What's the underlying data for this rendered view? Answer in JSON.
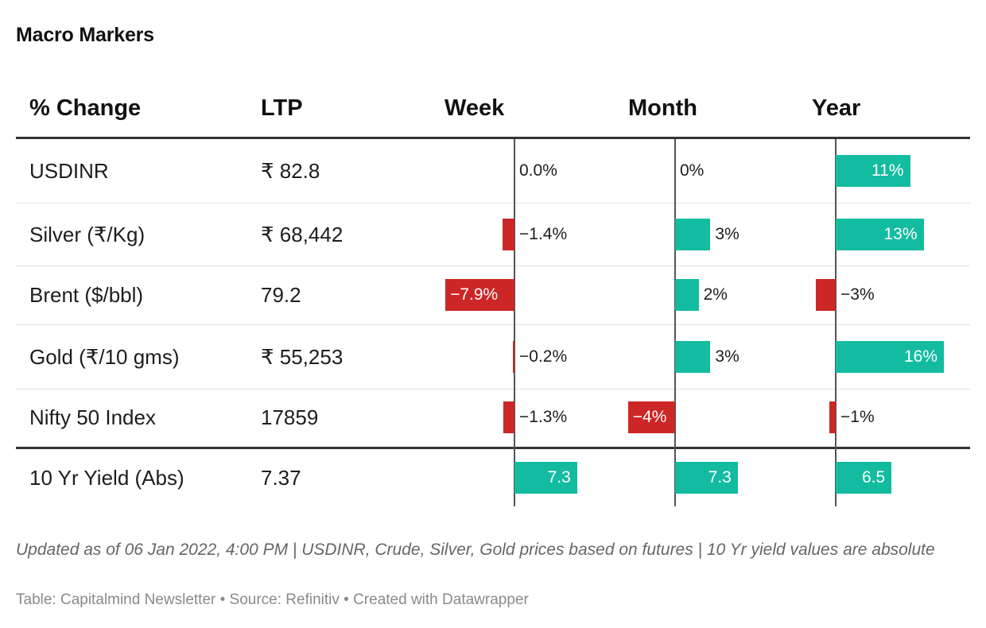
{
  "title": "Macro Markers",
  "columns": {
    "change": "% Change",
    "ltp": "LTP",
    "week": "Week",
    "month": "Month",
    "year": "Year"
  },
  "rows": [
    {
      "name": "USDINR",
      "ltp": "₹ 82.8",
      "week": "0.0%",
      "month": "0%",
      "year": "11%"
    },
    {
      "name": "Silver (₹/Kg)",
      "ltp": "₹ 68,442",
      "week": "−1.4%",
      "month": "3%",
      "year": "13%"
    },
    {
      "name": "Brent ($/bbl)",
      "ltp": "79.2",
      "week": "−7.9%",
      "month": "2%",
      "year": "−3%"
    },
    {
      "name": "Gold (₹/10 gms)",
      "ltp": "₹ 55,253",
      "week": "−0.2%",
      "month": "3%",
      "year": "16%"
    },
    {
      "name": "Nifty 50 Index",
      "ltp": "17859",
      "week": "−1.3%",
      "month": "−4%",
      "year": "−1%"
    },
    {
      "name": "10 Yr Yield (Abs)",
      "ltp": "7.37",
      "week": "7.3",
      "month": "7.3",
      "year": "6.5"
    }
  ],
  "chart_data": {
    "type": "table",
    "title": "Macro Markers",
    "columns": [
      "% Change",
      "LTP",
      "Week",
      "Month",
      "Year"
    ],
    "series": [
      {
        "name": "Week",
        "values": [
          0.0,
          -1.4,
          -7.9,
          -0.2,
          -1.3,
          7.3
        ]
      },
      {
        "name": "Month",
        "values": [
          0,
          3,
          2,
          3,
          -4,
          7.3
        ]
      },
      {
        "name": "Year",
        "values": [
          11,
          13,
          -3,
          16,
          -1,
          6.5
        ]
      }
    ],
    "categories": [
      "USDINR",
      "Silver (₹/Kg)",
      "Brent ($/bbl)",
      "Gold (₹/10 gms)",
      "Nifty 50 Index",
      "10 Yr Yield (Abs)"
    ],
    "colors": {
      "positive": "#13bca0",
      "negative": "#cc2626"
    }
  },
  "footnote": "Updated as of 06 Jan 2022, 4:00 PM | USDINR, Crude, Silver, Gold prices based on futures | 10 Yr yield values are absolute",
  "credits": "Table: Capitalmind Newsletter • Source: Refinitiv • Created with Datawrapper"
}
